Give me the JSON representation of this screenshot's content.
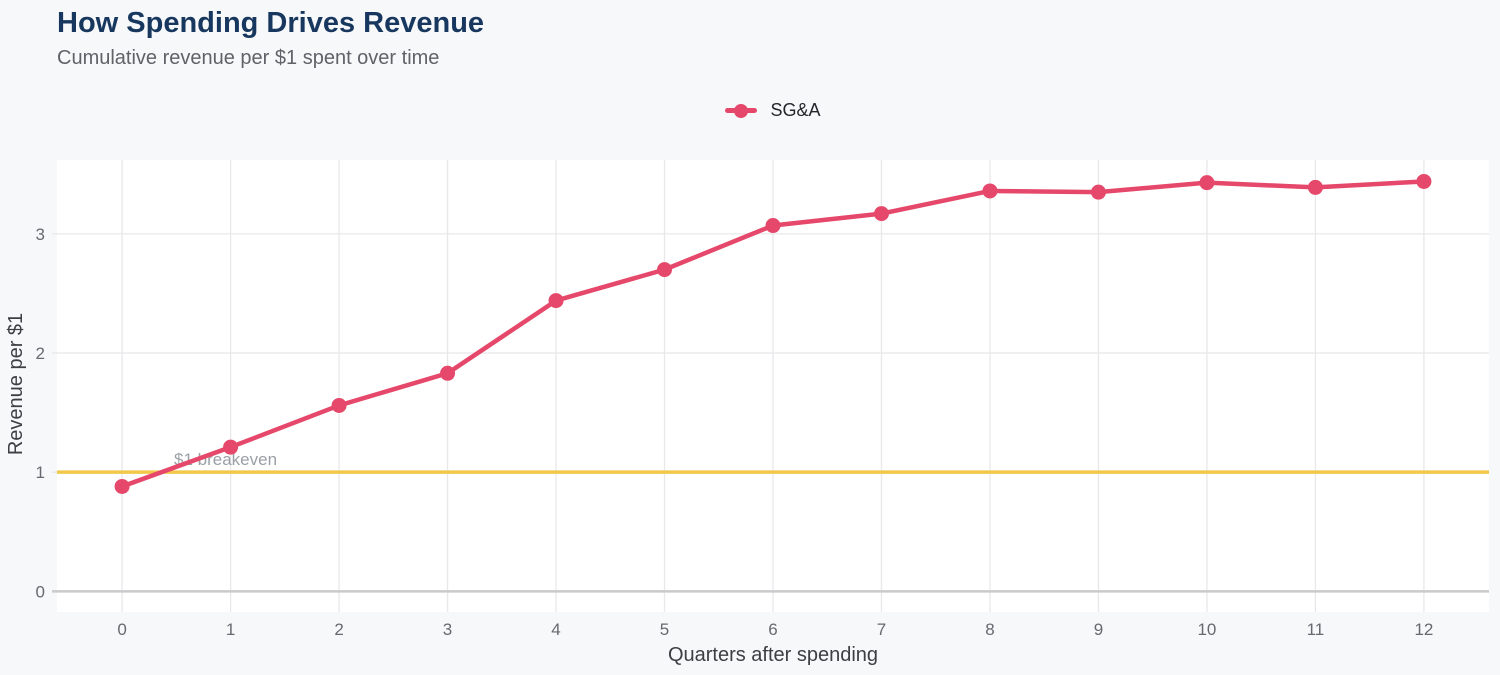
{
  "header": {
    "title": "How Spending Drives Revenue",
    "subtitle": "Cumulative revenue per $1 spent over time"
  },
  "chart_data": {
    "type": "line",
    "title": "How Spending Drives Revenue",
    "subtitle": "Cumulative revenue per $1 spent over time",
    "xlabel": "Quarters after spending",
    "ylabel": "Revenue per $1",
    "x": [
      0,
      1,
      2,
      3,
      4,
      5,
      6,
      7,
      8,
      9,
      10,
      11,
      12
    ],
    "series": [
      {
        "name": "SG&A",
        "color": "#e5486a",
        "values": [
          0.88,
          1.21,
          1.56,
          1.83,
          2.44,
          2.7,
          3.07,
          3.17,
          3.36,
          3.35,
          3.43,
          3.39,
          3.44
        ]
      }
    ],
    "y_ticks": [
      0,
      1,
      2,
      3
    ],
    "xlim": [
      -0.6,
      12.6
    ],
    "ylim": [
      -0.14,
      3.62
    ],
    "grid": true,
    "legend_position": "top-center",
    "reference_line": {
      "value": 1,
      "label": "$1 breakeven",
      "color": "#f2c84b"
    }
  }
}
